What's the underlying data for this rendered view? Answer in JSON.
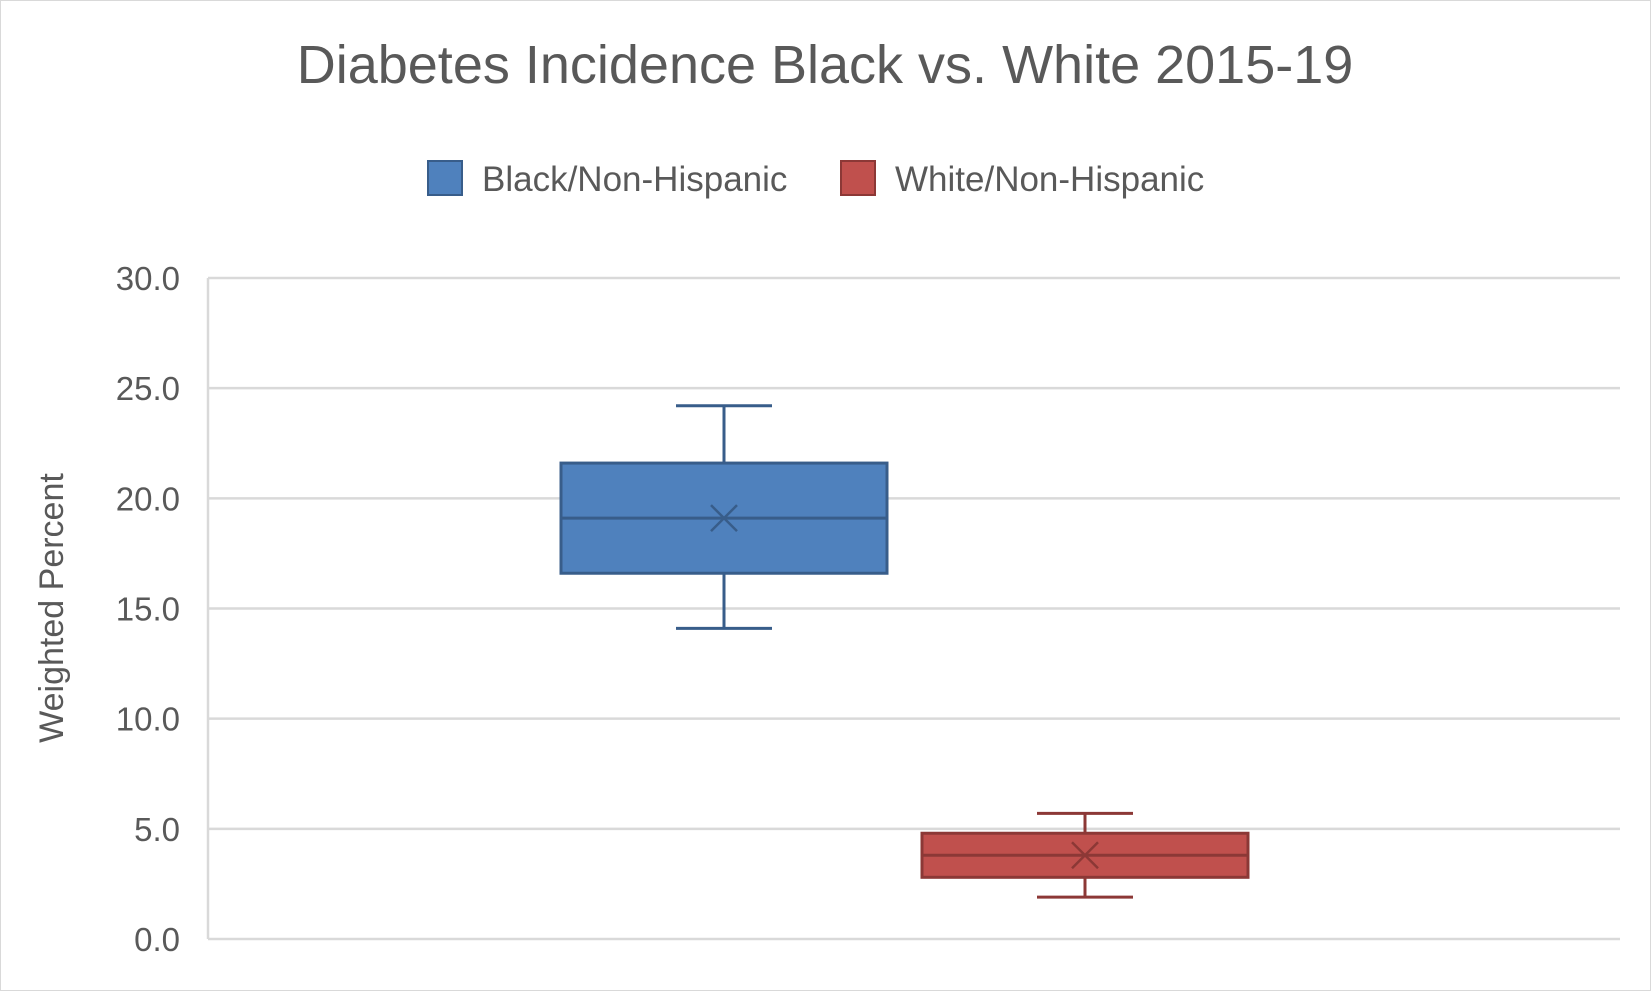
{
  "chart_data": {
    "type": "box",
    "title": "Diabetes Incidence Black vs. White 2015-19",
    "ylabel": "Weighted Percent",
    "xlabel": "",
    "ylim": [
      0,
      30
    ],
    "yticks": [
      "0.0",
      "5.0",
      "10.0",
      "15.0",
      "20.0",
      "25.0",
      "30.0"
    ],
    "ytick_values": [
      0,
      5,
      10,
      15,
      20,
      25,
      30
    ],
    "grid": true,
    "legend_position": "top",
    "series": [
      {
        "name": "Black/Non-Hispanic",
        "color": "#4f81bd",
        "edge_color": "#385d8a",
        "min": 14.1,
        "q1": 16.6,
        "median": 19.1,
        "q3": 21.6,
        "max": 24.2,
        "mean": 19.1
      },
      {
        "name": "White/Non-Hispanic",
        "color": "#c0504d",
        "edge_color": "#8c3836",
        "min": 1.9,
        "q1": 2.8,
        "median": 3.8,
        "q3": 4.8,
        "max": 5.7,
        "mean": 3.8
      }
    ]
  }
}
